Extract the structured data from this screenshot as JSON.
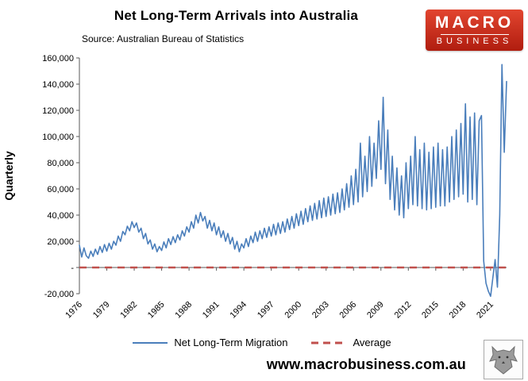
{
  "header": {
    "title": "Net Long-Term Arrivals into Australia",
    "source": "Source: Australian Bureau of Statistics"
  },
  "logo": {
    "line1": "MACRO",
    "line2": "BUSINESS"
  },
  "footer": {
    "url": "www.macrobusiness.com.au"
  },
  "colors": {
    "line_blue": "#4A7EBB",
    "average_red": "#C0504D",
    "logo_red_top": "#E2452F",
    "logo_red_bottom": "#B01D0F",
    "axis_gray": "#595959"
  },
  "chart_data": {
    "type": "line",
    "title": "Net Long-Term Arrivals into Australia",
    "subtitle": "Source: Australian Bureau of Statistics",
    "xlabel": "",
    "ylabel": "Quarterly",
    "ylim": [
      -20000,
      160000
    ],
    "ytick_step": 20000,
    "ytick_labels": [
      "-20,000",
      "-",
      "20,000",
      "40,000",
      "60,000",
      "80,000",
      "100,000",
      "120,000",
      "140,000",
      "160,000"
    ],
    "x_start_year": 1976,
    "x_frequency": "quarterly",
    "x_tick_years": [
      1976,
      1979,
      1982,
      1985,
      1988,
      1991,
      1994,
      1997,
      2000,
      2003,
      2006,
      2009,
      2012,
      2015,
      2018,
      2021
    ],
    "x_label_rotation": 45,
    "grid": false,
    "legend_position": "bottom",
    "axis_color": "#595959",
    "series": [
      {
        "name": "Net Long-Term Migration",
        "color": "#4A7EBB",
        "style": "solid",
        "values": [
          17000,
          8000,
          15000,
          9000,
          7000,
          12500,
          8500,
          14000,
          10000,
          16000,
          11500,
          17500,
          12500,
          18500,
          14000,
          20000,
          17000,
          24000,
          20000,
          27500,
          25000,
          31500,
          28000,
          35000,
          30500,
          34000,
          27000,
          30000,
          22000,
          26000,
          18000,
          21000,
          14000,
          18000,
          12000,
          16000,
          13000,
          19500,
          15000,
          22000,
          17500,
          23500,
          19000,
          25000,
          21000,
          28000,
          24000,
          31000,
          27000,
          35000,
          30000,
          40000,
          34000,
          42000,
          35500,
          39000,
          30000,
          36000,
          28000,
          34000,
          25000,
          31000,
          23000,
          28000,
          20000,
          26000,
          18000,
          23000,
          14000,
          20000,
          12000,
          18000,
          15000,
          22000,
          16000,
          24000,
          19000,
          27000,
          20000,
          28000,
          22000,
          30000,
          23000,
          31000,
          24000,
          33000,
          25000,
          34000,
          26000,
          35000,
          27000,
          37000,
          29000,
          39000,
          30000,
          41000,
          32000,
          43000,
          33000,
          45000,
          35000,
          47000,
          36000,
          49000,
          37000,
          51000,
          38000,
          53000,
          39000,
          54000,
          40000,
          56000,
          41000,
          57000,
          42000,
          60000,
          44000,
          64000,
          46000,
          70000,
          48000,
          75000,
          50000,
          95000,
          54000,
          85000,
          58000,
          100000,
          62000,
          95000,
          68000,
          112000,
          75000,
          130000,
          64000,
          105000,
          52000,
          85000,
          44000,
          76000,
          40000,
          70000,
          38000,
          80000,
          45000,
          85000,
          48000,
          100000,
          47000,
          90000,
          45000,
          95000,
          44000,
          88000,
          45000,
          92000,
          46000,
          95000,
          47000,
          90000,
          47000,
          92000,
          50000,
          100000,
          52000,
          105000,
          54000,
          110000,
          56000,
          125000,
          50000,
          115000,
          52000,
          118000,
          48000,
          112000,
          116000,
          5000,
          -12000,
          -18000,
          -22000,
          -8000,
          6000,
          -15000,
          40000,
          155000,
          88000,
          142000
        ]
      },
      {
        "name": "Average",
        "color": "#C0504D",
        "style": "dashed",
        "value": 0
      }
    ]
  }
}
